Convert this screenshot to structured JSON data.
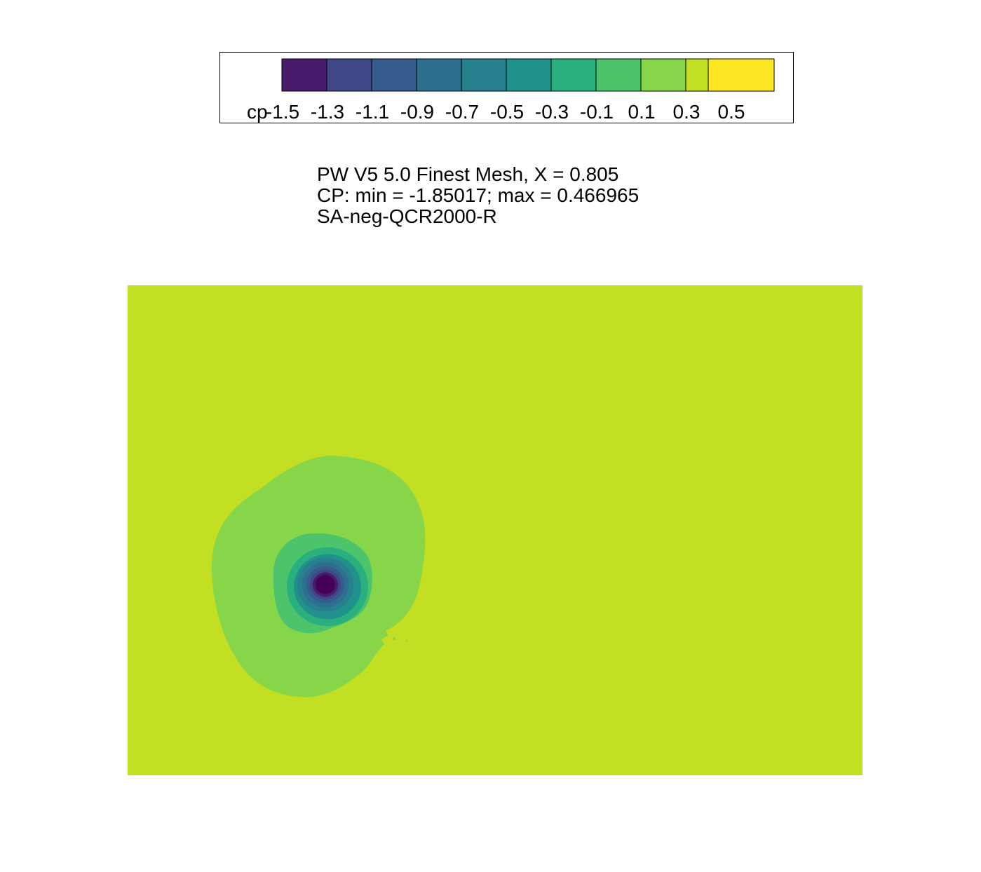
{
  "chart_data": {
    "type": "heatmap",
    "title_lines": [
      "PW V5 5.0 Finest Mesh, X = 0.805",
      "CP:  min = -1.85017; max = 0.466965",
      "SA-neg-QCR2000-R"
    ],
    "variable": "cp",
    "min": -1.85017,
    "max": 0.466965,
    "colorbar": {
      "label": "cp",
      "tick_labels": [
        "-1.5",
        "-1.3",
        "-1.1",
        "-0.9",
        "-0.7",
        "-0.5",
        "-0.3",
        "-0.1",
        "0.1",
        "0.3",
        "0.5"
      ],
      "levels": [
        {
          "value": -1.6,
          "color": "#440154"
        },
        {
          "value": -1.4,
          "color": "#481b6d"
        },
        {
          "value": -1.2,
          "color": "#3f4788"
        },
        {
          "value": -1.0,
          "color": "#365c8d"
        },
        {
          "value": -0.8,
          "color": "#2e6e8e"
        },
        {
          "value": -0.6,
          "color": "#27808e"
        },
        {
          "value": -0.4,
          "color": "#21918c"
        },
        {
          "value": -0.2,
          "color": "#2ab07f"
        },
        {
          "value": 0.0,
          "color": "#4dc36b"
        },
        {
          "value": 0.2,
          "color": "#87d549"
        },
        {
          "value": 0.4,
          "color": "#c2df23"
        },
        {
          "value": 0.6,
          "color": "#fde725"
        }
      ]
    },
    "field": {
      "background_value": 0.4,
      "vortex_core_min": -1.85017,
      "contour_bands": [
        {
          "value": 0.2,
          "color": "#87d549"
        },
        {
          "value": 0.0,
          "color": "#4dc36b"
        },
        {
          "value": -0.2,
          "color": "#2ab07f"
        },
        {
          "value": -0.4,
          "color": "#21918c"
        },
        {
          "value": -0.6,
          "color": "#27808e"
        },
        {
          "value": -0.8,
          "color": "#2e6e8e"
        },
        {
          "value": -1.0,
          "color": "#365c8d"
        },
        {
          "value": -1.2,
          "color": "#3f4788"
        },
        {
          "value": -1.4,
          "color": "#481b6d"
        },
        {
          "value": -1.6,
          "color": "#440154"
        }
      ]
    }
  }
}
